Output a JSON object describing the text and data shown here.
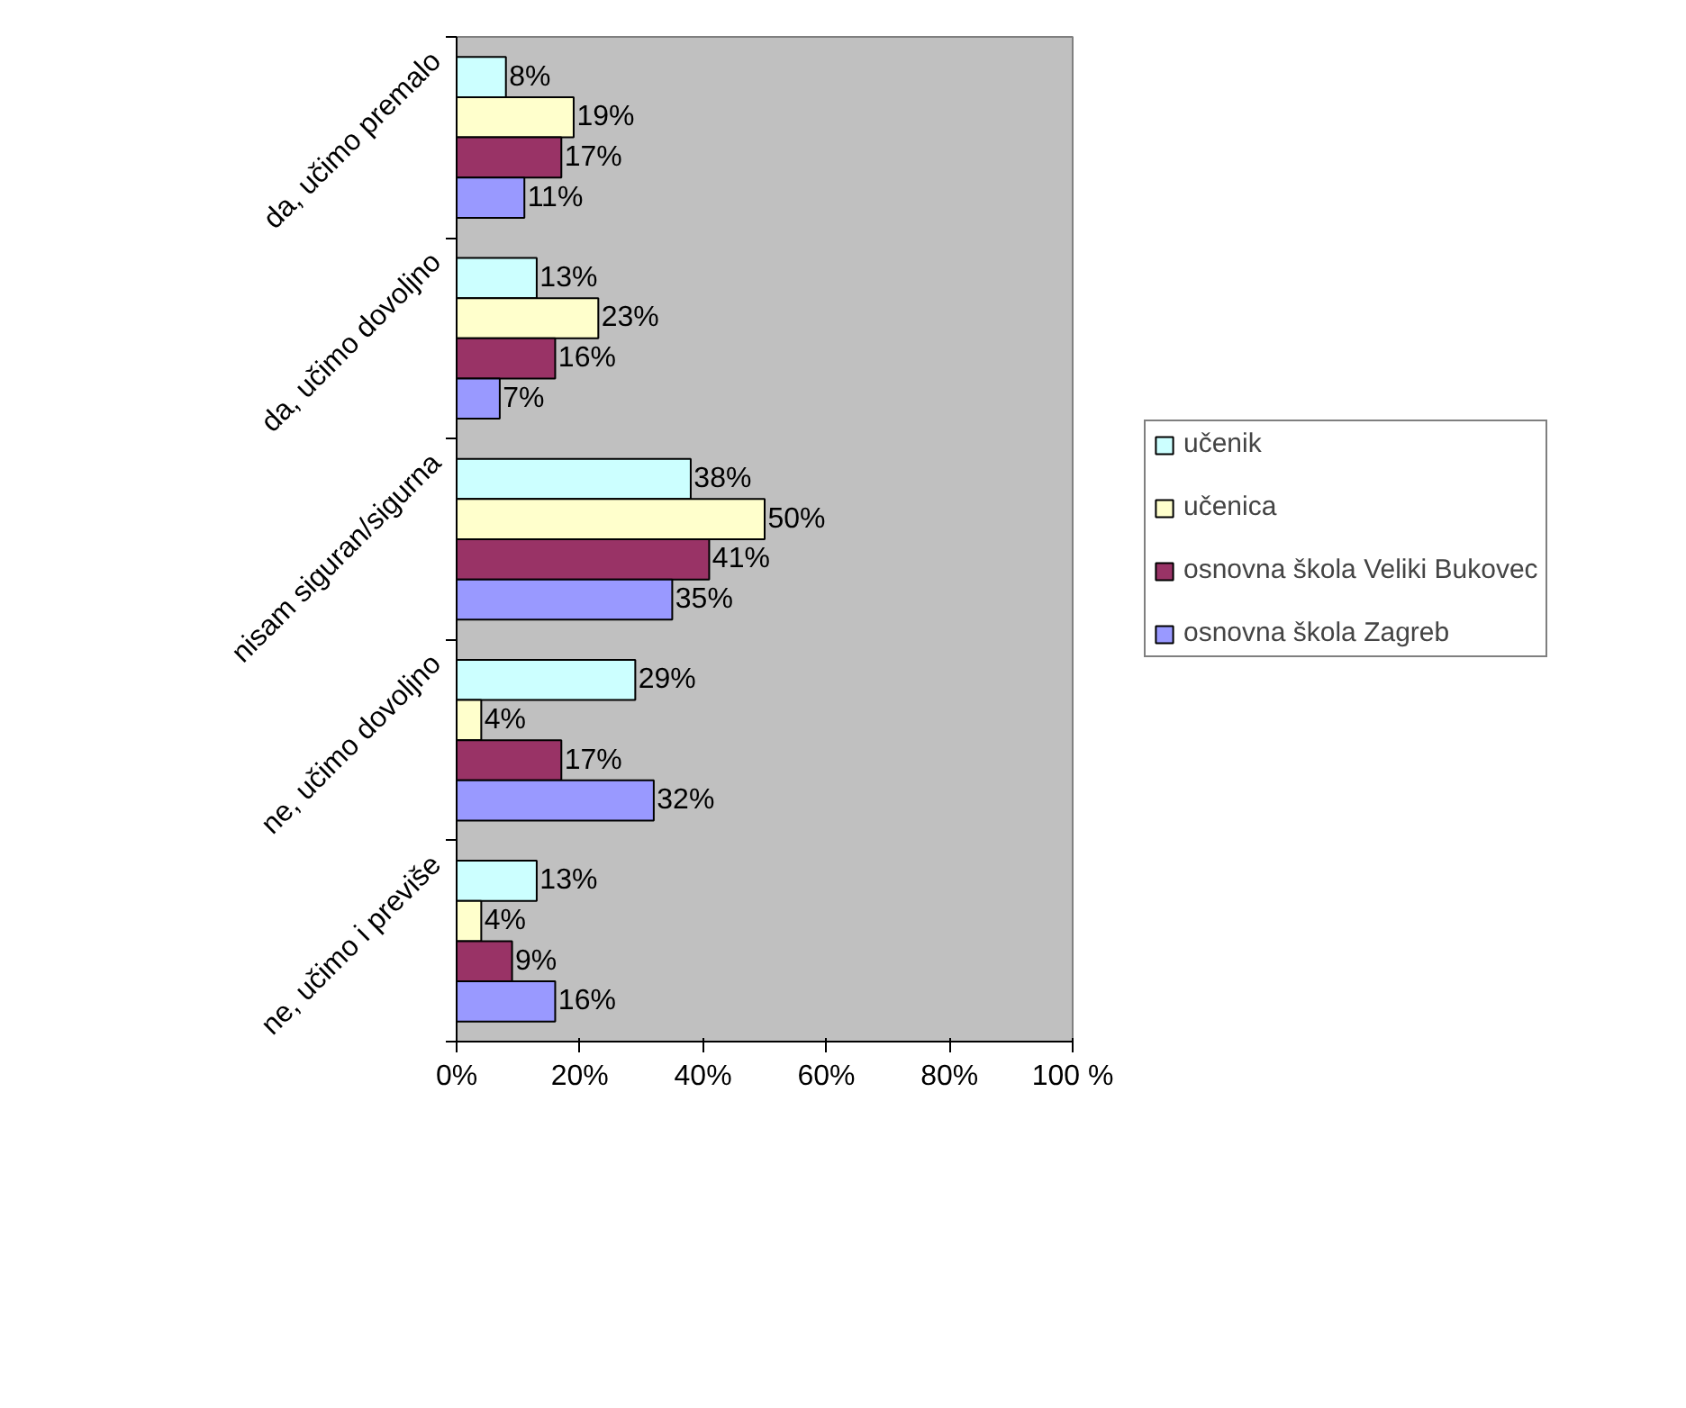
{
  "chart_data": {
    "type": "bar",
    "orientation": "horizontal",
    "categories": [
      "da, učimo premalo",
      "da, učimo dovoljno",
      "nisam siguran/sigurna",
      "ne, učimo dovoljno",
      "ne, učimo i previše"
    ],
    "series": [
      {
        "name": "učenik",
        "color": "#ccffff",
        "values": [
          8,
          13,
          38,
          29,
          13
        ],
        "value_labels": [
          "8%",
          "13%",
          "38%",
          "29%",
          "13%"
        ]
      },
      {
        "name": "učenica",
        "color": "#ffffcc",
        "values": [
          19,
          23,
          50,
          4,
          4
        ],
        "value_labels": [
          "19%",
          "23%",
          "50%",
          "4%",
          "4%"
        ]
      },
      {
        "name": "osnovna škola Veliki Bukovec",
        "color": "#993366",
        "values": [
          17,
          16,
          41,
          17,
          9
        ],
        "value_labels": [
          "17%",
          "16%",
          "41%",
          "17%",
          "9%"
        ]
      },
      {
        "name": "osnovna škola Zagreb",
        "color": "#9999ff",
        "values": [
          11,
          7,
          35,
          32,
          16
        ],
        "value_labels": [
          "11%",
          "7%",
          "35%",
          "32%",
          "16%"
        ]
      }
    ],
    "xlim": [
      0,
      100
    ],
    "xticks": [
      {
        "value": 0,
        "label": "0%"
      },
      {
        "value": 20,
        "label": "20%"
      },
      {
        "value": 40,
        "label": "40%"
      },
      {
        "value": 60,
        "label": "60%"
      },
      {
        "value": 80,
        "label": "80%"
      },
      {
        "value": 100,
        "label": "100 %"
      }
    ],
    "legend": "right",
    "grid": false
  }
}
